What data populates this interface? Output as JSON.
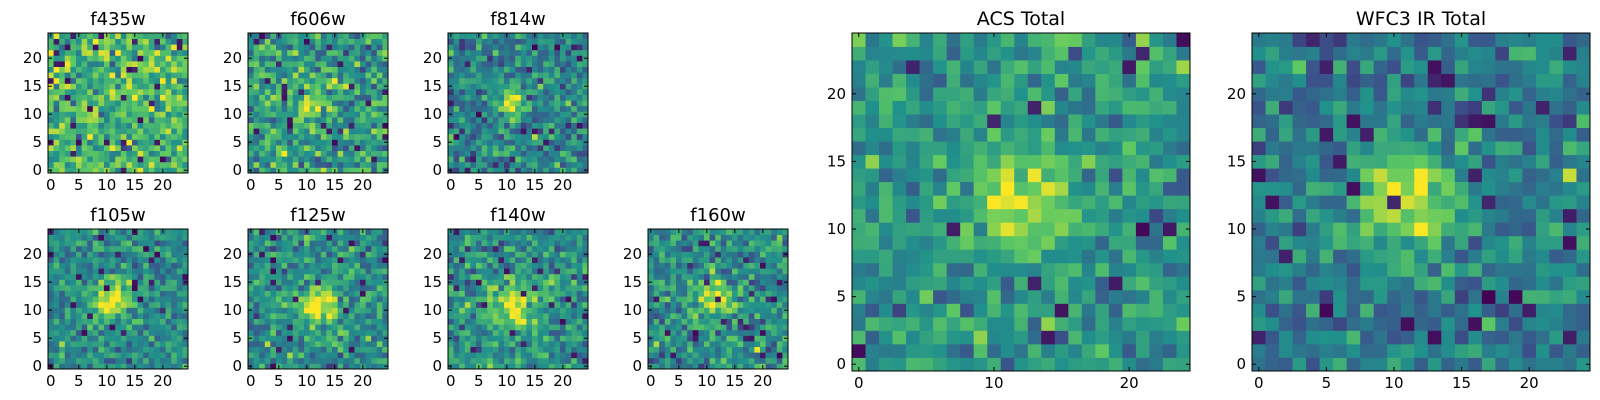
{
  "colormap": {
    "name": "viridis",
    "stops": [
      "#440154",
      "#3b528b",
      "#21918c",
      "#5ec962",
      "#fde725"
    ]
  },
  "chart_data": [
    {
      "type": "heatmap",
      "title": "f435w",
      "grid_size": 25,
      "x_ticks": [
        0,
        5,
        10,
        15,
        20
      ],
      "y_ticks": [
        0,
        5,
        10,
        15,
        20
      ],
      "xlim": [
        -0.5,
        24.5
      ],
      "ylim": [
        -0.5,
        24.5
      ],
      "source": {
        "center": [
          12,
          12
        ],
        "peak": 0.0,
        "sigma": 3.0,
        "background": 0.66,
        "noise": 0.16,
        "dark_fraction": 0.04
      }
    },
    {
      "type": "heatmap",
      "title": "f606w",
      "grid_size": 25,
      "x_ticks": [
        0,
        5,
        10,
        15,
        20
      ],
      "y_ticks": [
        0,
        5,
        10,
        15,
        20
      ],
      "xlim": [
        -0.5,
        24.5
      ],
      "ylim": [
        -0.5,
        24.5
      ],
      "source": {
        "center": [
          11,
          12
        ],
        "peak": 0.3,
        "sigma": 2.0,
        "background": 0.55,
        "noise": 0.16,
        "dark_fraction": 0.05
      }
    },
    {
      "type": "heatmap",
      "title": "f814w",
      "grid_size": 25,
      "x_ticks": [
        0,
        5,
        10,
        15,
        20
      ],
      "y_ticks": [
        0,
        5,
        10,
        15,
        20
      ],
      "xlim": [
        -0.5,
        24.5
      ],
      "ylim": [
        -0.5,
        24.5
      ],
      "source": {
        "center": [
          11,
          12
        ],
        "peak": 0.5,
        "sigma": 1.8,
        "background": 0.45,
        "noise": 0.14,
        "dark_fraction": 0.03
      }
    },
    {
      "type": "heatmap",
      "title": "f105w",
      "grid_size": 25,
      "x_ticks": [
        0,
        5,
        10,
        15,
        20
      ],
      "y_ticks": [
        0,
        5,
        10,
        15,
        20
      ],
      "xlim": [
        -0.5,
        24.5
      ],
      "ylim": [
        -0.5,
        24.5
      ],
      "source": {
        "center": [
          11,
          12
        ],
        "peak": 0.5,
        "sigma": 2.6,
        "background": 0.48,
        "noise": 0.12,
        "dark_fraction": 0.03
      }
    },
    {
      "type": "heatmap",
      "title": "f125w",
      "grid_size": 25,
      "x_ticks": [
        0,
        5,
        10,
        15,
        20
      ],
      "y_ticks": [
        0,
        5,
        10,
        15,
        20
      ],
      "xlim": [
        -0.5,
        24.5
      ],
      "ylim": [
        -0.5,
        24.5
      ],
      "source": {
        "center": [
          12,
          11
        ],
        "peak": 0.5,
        "sigma": 2.4,
        "background": 0.5,
        "noise": 0.13,
        "dark_fraction": 0.03
      }
    },
    {
      "type": "heatmap",
      "title": "f140w",
      "grid_size": 25,
      "x_ticks": [
        0,
        5,
        10,
        15,
        20
      ],
      "y_ticks": [
        0,
        5,
        10,
        15,
        20
      ],
      "xlim": [
        -0.5,
        24.5
      ],
      "ylim": [
        -0.5,
        24.5
      ],
      "source": {
        "center": [
          11,
          11
        ],
        "peak": 0.45,
        "sigma": 2.8,
        "background": 0.5,
        "noise": 0.13,
        "dark_fraction": 0.03
      }
    },
    {
      "type": "heatmap",
      "title": "f160w",
      "grid_size": 25,
      "x_ticks": [
        0,
        5,
        10,
        15,
        20
      ],
      "y_ticks": [
        0,
        5,
        10,
        15,
        20
      ],
      "xlim": [
        -0.5,
        24.5
      ],
      "ylim": [
        -0.5,
        24.5
      ],
      "source": {
        "center": [
          11,
          12
        ],
        "peak": 0.45,
        "sigma": 2.4,
        "background": 0.48,
        "noise": 0.14,
        "dark_fraction": 0.03
      }
    },
    {
      "type": "heatmap",
      "title": "ACS Total",
      "grid_size": 25,
      "x_ticks": [
        0,
        10,
        20
      ],
      "y_ticks": [
        0,
        5,
        10,
        15,
        20
      ],
      "xlim": [
        -0.5,
        24.5
      ],
      "ylim": [
        -0.5,
        24.5
      ],
      "source": {
        "center": [
          12,
          12
        ],
        "peak": 0.45,
        "sigma": 2.5,
        "background": 0.52,
        "noise": 0.12,
        "dark_fraction": 0.03
      }
    },
    {
      "type": "heatmap",
      "title": "WFC3 IR Total",
      "grid_size": 25,
      "x_ticks": [
        0,
        5,
        10,
        15,
        20
      ],
      "y_ticks": [
        0,
        5,
        10,
        15,
        20
      ],
      "xlim": [
        -0.5,
        24.5
      ],
      "ylim": [
        -0.5,
        24.5
      ],
      "source": {
        "center": [
          11,
          12
        ],
        "peak": 0.5,
        "sigma": 2.8,
        "background": 0.42,
        "noise": 0.12,
        "dark_fraction": 0.04
      }
    }
  ]
}
